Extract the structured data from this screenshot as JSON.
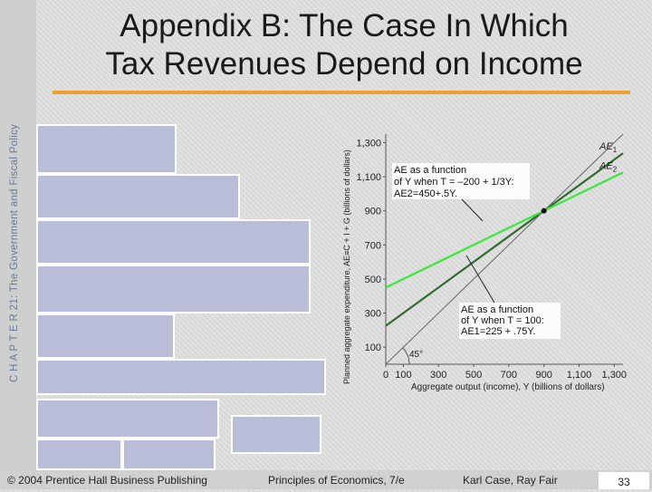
{
  "sidebar": {
    "chapter_label": "C H A P T E R 21: The Government and Fiscal Policy"
  },
  "slide": {
    "title_line1": "Appendix B:  The Case In Which",
    "title_line2": "Tax Revenues Depend on Income"
  },
  "footer": {
    "copyright": "© 2004 Prentice Hall Business Publishing",
    "book": "Principles of Economics, 7/e",
    "authors": "Karl Case, Ray Fair",
    "page": "33"
  },
  "colors": {
    "accent_rule": "#f0a030",
    "ae1_line": "#2f6b2f",
    "ae2_line": "#39e83a",
    "placeholder_box": "#b9bdd8"
  },
  "chart_data": {
    "type": "line",
    "xlabel": "Aggregate output (income), Y (billions of dollars)",
    "ylabel": "Planned aggregate expenditure, AE≡C + I + G (billions of dollars)",
    "xlim": [
      0,
      1350
    ],
    "ylim": [
      0,
      1350
    ],
    "x_ticks": [
      0,
      100,
      300,
      500,
      700,
      900,
      1100,
      1300
    ],
    "x_tick_labels": [
      "0",
      "100",
      "300",
      "500",
      "700",
      "900",
      "1,100",
      "1,300"
    ],
    "y_ticks": [
      100,
      300,
      500,
      700,
      900,
      1100,
      1300
    ],
    "y_tick_labels": [
      "100",
      "300",
      "500",
      "700",
      "900",
      "1,100",
      "1,300"
    ],
    "series": [
      {
        "name": "AE1",
        "label_main": "AE",
        "label_sub": "1",
        "intercept": 225,
        "slope": 0.75,
        "color": "#2f6b2f"
      },
      {
        "name": "AE2",
        "label_main": "AE",
        "label_sub": "2",
        "intercept": 450,
        "slope": 0.5,
        "color": "#39e83a"
      },
      {
        "name": "45-degree line",
        "intercept": 0,
        "slope": 1,
        "color": "#666666"
      }
    ],
    "equilibrium": {
      "x": 900,
      "y": 900
    },
    "angle_label": "45°",
    "annotations": [
      {
        "lines": [
          "AE as a function",
          "of Y when T = –200 + 1/3Y:",
          "AE2=450+.5Y."
        ]
      },
      {
        "lines": [
          "AE as a function",
          "of Y when T = 100:",
          "AE1=225 + .75Y."
        ]
      }
    ]
  }
}
